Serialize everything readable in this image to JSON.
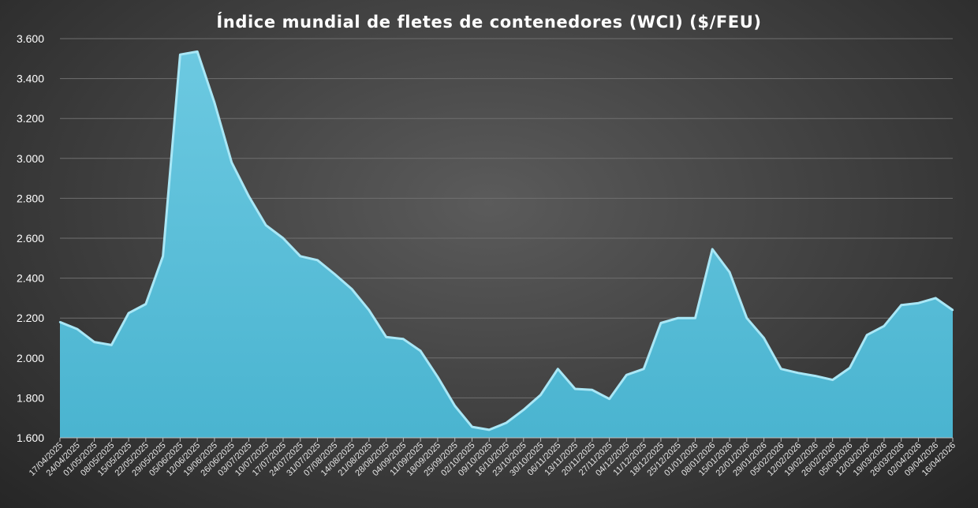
{
  "chart_data": {
    "type": "area",
    "title": "Índice mundial de fletes de contenedores (WCI) ($/FEU)",
    "xlabel": "",
    "ylabel": "",
    "ylim": [
      1600,
      3600
    ],
    "yticks": [
      1600,
      1800,
      2000,
      2200,
      2400,
      2600,
      2800,
      3000,
      3200,
      3400,
      3600
    ],
    "ytick_labels": [
      "1.600",
      "1.800",
      "2.000",
      "2.200",
      "2.400",
      "2.600",
      "2.800",
      "3.000",
      "3.200",
      "3.400",
      "3.600"
    ],
    "grid": true,
    "colors": {
      "fill": "#4db8d4",
      "fill_light": "#7fd3e8",
      "edge": "#a9e7f6",
      "grid": "#6f6f6f"
    },
    "x": [
      "17/04/2025",
      "24/04/2025",
      "01/05/2025",
      "08/05/2025",
      "15/05/2025",
      "22/05/2025",
      "29/05/2025",
      "05/06/2025",
      "12/06/2025",
      "19/06/2025",
      "26/06/2025",
      "03/07/2025",
      "10/07/2025",
      "17/07/2025",
      "24/07/2025",
      "31/07/2025",
      "07/08/2025",
      "14/08/2025",
      "21/08/2025",
      "28/08/2025",
      "04/09/2025",
      "11/09/2025",
      "18/09/2025",
      "25/09/2025",
      "02/10/2025",
      "09/10/2025",
      "16/10/2025",
      "23/10/2025",
      "30/10/2025",
      "06/11/2025",
      "13/11/2025",
      "20/11/2025",
      "27/11/2025",
      "04/12/2025",
      "11/12/2025",
      "18/12/2025",
      "25/12/2025",
      "01/01/2026",
      "08/01/2026",
      "15/01/2026",
      "22/01/2026",
      "29/01/2026",
      "05/02/2026",
      "12/02/2026",
      "19/02/2026",
      "26/02/2026",
      "05/03/2026",
      "12/03/2026",
      "19/03/2026",
      "26/03/2026",
      "02/04/2026",
      "09/04/2026",
      "16/04/2026"
    ],
    "series": [
      {
        "values": [
          2180,
          2145,
          2080,
          2065,
          2225,
          2270,
          2510,
          3520,
          3535,
          3280,
          2980,
          2810,
          2665,
          2600,
          2510,
          2490,
          2420,
          2345,
          2240,
          2105,
          2095,
          2035,
          1905,
          1760,
          1655,
          1640,
          1675,
          1740,
          1815,
          1945,
          1845,
          1840,
          1795,
          1915,
          1945,
          2175,
          2200,
          2200,
          2545,
          2430,
          2200,
          2100,
          1945,
          1925,
          1910,
          1890,
          1950,
          2115,
          2160,
          2265,
          2275,
          2300,
          2240
        ]
      }
    ]
  }
}
